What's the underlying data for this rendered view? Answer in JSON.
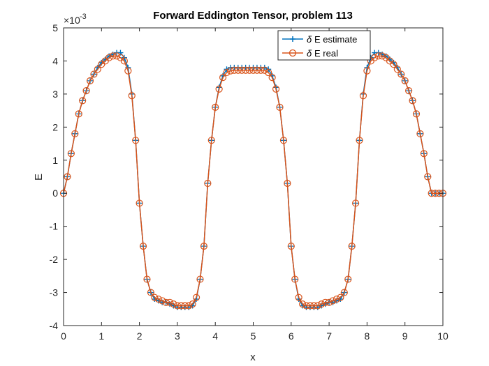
{
  "chart_data": {
    "type": "line",
    "title": "Forward Eddington Tensor, problem 113",
    "xlabel": "x",
    "ylabel": "E",
    "exponent_label": "×10",
    "exponent_power": "-3",
    "xlim": [
      0,
      10
    ],
    "ylim": [
      -4,
      5
    ],
    "xticks": [
      "0",
      "1",
      "2",
      "3",
      "4",
      "5",
      "6",
      "7",
      "8",
      "9",
      "10"
    ],
    "yticks": [
      "-4",
      "-3",
      "-2",
      "-1",
      "0",
      "1",
      "2",
      "3",
      "4",
      "5"
    ],
    "grid": false,
    "legend_position": "top-right",
    "series": [
      {
        "name": "δ E estimate",
        "legend_symbol": "δ",
        "legend_text": "E estimate",
        "marker": "plus",
        "color": "#0072BD",
        "x": [
          0,
          0.1,
          0.2,
          0.3,
          0.4,
          0.5,
          0.6,
          0.7,
          0.8,
          0.9,
          1.0,
          1.1,
          1.2,
          1.3,
          1.4,
          1.5,
          1.6,
          1.7,
          1.8,
          1.9,
          2.0,
          2.1,
          2.2,
          2.3,
          2.4,
          2.5,
          2.6,
          2.7,
          2.8,
          2.9,
          3.0,
          3.1,
          3.2,
          3.3,
          3.4,
          3.5,
          3.6,
          3.7,
          3.8,
          3.9,
          4.0,
          4.1,
          4.2,
          4.3,
          4.4,
          4.5,
          4.6,
          4.7,
          4.8,
          4.9,
          5.0,
          5.1,
          5.2,
          5.3,
          5.4,
          5.5,
          5.6,
          5.7,
          5.8,
          5.9,
          6.0,
          6.1,
          6.2,
          6.3,
          6.4,
          6.5,
          6.6,
          6.7,
          6.8,
          6.9,
          7.0,
          7.1,
          7.2,
          7.3,
          7.4,
          7.5,
          7.6,
          7.7,
          7.8,
          7.9,
          8.0,
          8.1,
          8.2,
          8.3,
          8.4,
          8.5,
          8.6,
          8.7,
          8.8,
          8.9,
          9.0,
          9.1,
          9.2,
          9.3,
          9.4,
          9.5,
          9.6,
          9.7,
          9.8,
          9.9,
          10.0
        ],
        "y": [
          0.0,
          0.5,
          1.2,
          1.8,
          2.4,
          2.8,
          3.1,
          3.4,
          3.6,
          3.8,
          3.95,
          4.05,
          4.15,
          4.2,
          4.25,
          4.25,
          4.1,
          3.8,
          3.0,
          1.6,
          -0.3,
          -1.6,
          -2.6,
          -3.0,
          -3.2,
          -3.25,
          -3.3,
          -3.3,
          -3.35,
          -3.4,
          -3.45,
          -3.45,
          -3.45,
          -3.45,
          -3.4,
          -3.2,
          -2.6,
          -1.6,
          0.3,
          1.6,
          2.6,
          3.2,
          3.55,
          3.75,
          3.8,
          3.8,
          3.8,
          3.8,
          3.8,
          3.8,
          3.8,
          3.8,
          3.8,
          3.8,
          3.75,
          3.55,
          3.2,
          2.6,
          1.6,
          0.3,
          -1.6,
          -2.6,
          -3.2,
          -3.4,
          -3.45,
          -3.45,
          -3.45,
          -3.45,
          -3.4,
          -3.35,
          -3.3,
          -3.3,
          -3.25,
          -3.2,
          -3.0,
          -2.6,
          -1.6,
          -0.3,
          1.6,
          3.0,
          3.8,
          4.1,
          4.25,
          4.25,
          4.2,
          4.15,
          4.05,
          3.95,
          3.8,
          3.6,
          3.4,
          3.1,
          2.8,
          2.4,
          1.8,
          1.2,
          0.5,
          0.0,
          0.0,
          0.0,
          0.0
        ]
      },
      {
        "name": "δ E real",
        "legend_symbol": "δ",
        "legend_text": "E real",
        "marker": "circle",
        "color": "#D95319",
        "x": [
          0,
          0.1,
          0.2,
          0.3,
          0.4,
          0.5,
          0.6,
          0.7,
          0.8,
          0.9,
          1.0,
          1.1,
          1.2,
          1.3,
          1.4,
          1.5,
          1.6,
          1.7,
          1.8,
          1.9,
          2.0,
          2.1,
          2.2,
          2.3,
          2.4,
          2.5,
          2.6,
          2.7,
          2.8,
          2.9,
          3.0,
          3.1,
          3.2,
          3.3,
          3.4,
          3.5,
          3.6,
          3.7,
          3.8,
          3.9,
          4.0,
          4.1,
          4.2,
          4.3,
          4.4,
          4.5,
          4.6,
          4.7,
          4.8,
          4.9,
          5.0,
          5.1,
          5.2,
          5.3,
          5.4,
          5.5,
          5.6,
          5.7,
          5.8,
          5.9,
          6.0,
          6.1,
          6.2,
          6.3,
          6.4,
          6.5,
          6.6,
          6.7,
          6.8,
          6.9,
          7.0,
          7.1,
          7.2,
          7.3,
          7.4,
          7.5,
          7.6,
          7.7,
          7.8,
          7.9,
          8.0,
          8.1,
          8.2,
          8.3,
          8.4,
          8.5,
          8.6,
          8.7,
          8.8,
          8.9,
          9.0,
          9.1,
          9.2,
          9.3,
          9.4,
          9.5,
          9.6,
          9.7,
          9.8,
          9.9,
          10.0
        ],
        "y": [
          0.0,
          0.5,
          1.2,
          1.8,
          2.4,
          2.8,
          3.1,
          3.4,
          3.6,
          3.75,
          3.9,
          4.0,
          4.1,
          4.15,
          4.15,
          4.1,
          4.0,
          3.7,
          2.95,
          1.6,
          -0.3,
          -1.6,
          -2.6,
          -3.0,
          -3.15,
          -3.2,
          -3.25,
          -3.3,
          -3.3,
          -3.35,
          -3.4,
          -3.4,
          -3.4,
          -3.4,
          -3.35,
          -3.15,
          -2.6,
          -1.6,
          0.3,
          1.6,
          2.6,
          3.15,
          3.5,
          3.65,
          3.7,
          3.72,
          3.72,
          3.72,
          3.72,
          3.72,
          3.72,
          3.72,
          3.72,
          3.72,
          3.65,
          3.5,
          3.15,
          2.6,
          1.6,
          0.3,
          -1.6,
          -2.6,
          -3.15,
          -3.35,
          -3.4,
          -3.4,
          -3.4,
          -3.4,
          -3.35,
          -3.3,
          -3.3,
          -3.25,
          -3.2,
          -3.15,
          -3.0,
          -2.6,
          -1.6,
          -0.3,
          1.6,
          2.95,
          3.7,
          4.0,
          4.1,
          4.15,
          4.15,
          4.1,
          4.0,
          3.9,
          3.75,
          3.6,
          3.4,
          3.1,
          2.8,
          2.4,
          1.8,
          1.2,
          0.5,
          0.0,
          0.0,
          0.0,
          0.0
        ]
      }
    ]
  }
}
